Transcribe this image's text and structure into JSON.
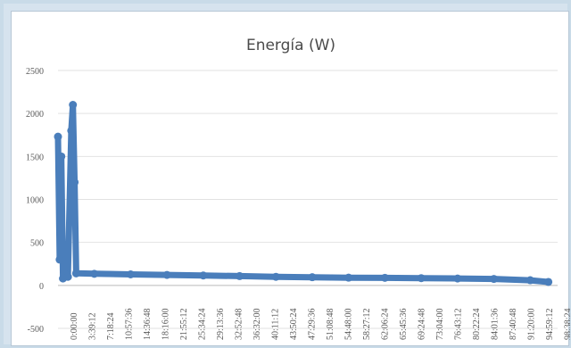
{
  "chart_data": {
    "type": "scatter",
    "title": "Energía (W)",
    "xlabel": "",
    "ylabel": "",
    "ylim": [
      -500,
      2500
    ],
    "yticks": [
      2500,
      2000,
      1500,
      1000,
      500,
      0,
      -500
    ],
    "x_tick_labels": [
      "0:00:00",
      "3:39:12",
      "7:18:24",
      "10:57:36",
      "14:36:48",
      "18:16:00",
      "21:55:12",
      "25:34:24",
      "29:13:36",
      "32:52:48",
      "36:32:00",
      "40:11:12",
      "43:50:24",
      "47:29:36",
      "51:08:48",
      "54:48:00",
      "58:27:12",
      "62:06:24",
      "65:45:36",
      "69:24:48",
      "73:04:00",
      "76:43:12",
      "80:22:24",
      "84:01:36",
      "87:40:48",
      "91:20:00",
      "94:59:12",
      "98:38:24"
    ],
    "grid": true,
    "series_color": "#4a7ebb",
    "series": [
      {
        "values": [
          {
            "x": "0:00:00",
            "y": 1730
          },
          {
            "x": "0:20:00",
            "y": 300
          },
          {
            "x": "0:40:00",
            "y": 1500
          },
          {
            "x": "1:00:00",
            "y": 80
          },
          {
            "x": "1:30:00",
            "y": 130
          },
          {
            "x": "2:00:00",
            "y": 100
          },
          {
            "x": "2:40:00",
            "y": 1800
          },
          {
            "x": "3:00:00",
            "y": 2100
          },
          {
            "x": "3:20:00",
            "y": 1200
          },
          {
            "x": "3:39:12",
            "y": 140
          },
          {
            "x": "7:18:24",
            "y": 135
          },
          {
            "x": "14:36:48",
            "y": 128
          },
          {
            "x": "21:55:12",
            "y": 122
          },
          {
            "x": "29:13:36",
            "y": 115
          },
          {
            "x": "36:32:00",
            "y": 108
          },
          {
            "x": "43:50:24",
            "y": 100
          },
          {
            "x": "51:08:48",
            "y": 95
          },
          {
            "x": "58:27:12",
            "y": 90
          },
          {
            "x": "65:45:36",
            "y": 88
          },
          {
            "x": "73:04:00",
            "y": 84
          },
          {
            "x": "80:22:24",
            "y": 80
          },
          {
            "x": "87:40:48",
            "y": 75
          },
          {
            "x": "94:59:12",
            "y": 60
          },
          {
            "x": "98:38:24",
            "y": 40
          }
        ]
      }
    ]
  }
}
